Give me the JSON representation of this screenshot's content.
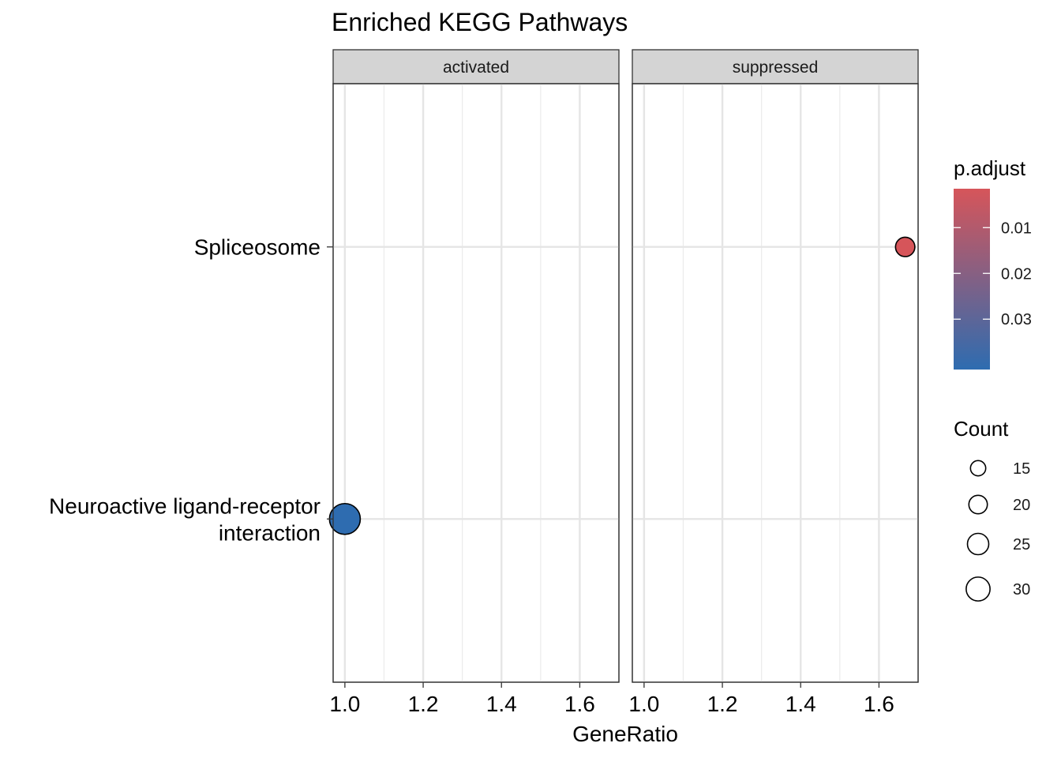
{
  "chart_data": {
    "type": "scatter",
    "title": "Enriched KEGG Pathways",
    "xlabel": "GeneRatio",
    "ylabel": "",
    "xlim": [
      0.97,
      1.7
    ],
    "x_ticks": [
      1.0,
      1.2,
      1.4,
      1.6
    ],
    "x_tick_labels": [
      "1.0",
      "1.2",
      "1.4",
      "1.6"
    ],
    "categories": [
      "Neuroactive ligand-receptor interaction",
      "Spliceosome"
    ],
    "category_labels": [
      [
        "Neuroactive ligand-receptor",
        "interaction"
      ],
      [
        "Spliceosome"
      ]
    ],
    "facets": [
      "activated",
      "suppressed"
    ],
    "points": [
      {
        "facet": "activated",
        "category": "Neuroactive ligand-receptor interaction",
        "x": 1.0,
        "count": 33,
        "p_adjust": 0.041
      },
      {
        "facet": "suppressed",
        "category": "Spliceosome",
        "x": 1.667,
        "count": 13,
        "p_adjust": 0.0015
      }
    ],
    "color_scale": {
      "title": "p.adjust",
      "min": 0.0015,
      "max": 0.041,
      "low_color": "#d6555a",
      "high_color": "#2e6cb0",
      "breaks": [
        0.01,
        0.02,
        0.03
      ],
      "break_labels": [
        "0.01",
        "0.02",
        "0.03"
      ]
    },
    "size_scale": {
      "title": "Count",
      "breaks": [
        15,
        20,
        25,
        30
      ],
      "break_labels": [
        "15",
        "20",
        "25",
        "30"
      ]
    },
    "legend_position": "right",
    "grid": true
  }
}
